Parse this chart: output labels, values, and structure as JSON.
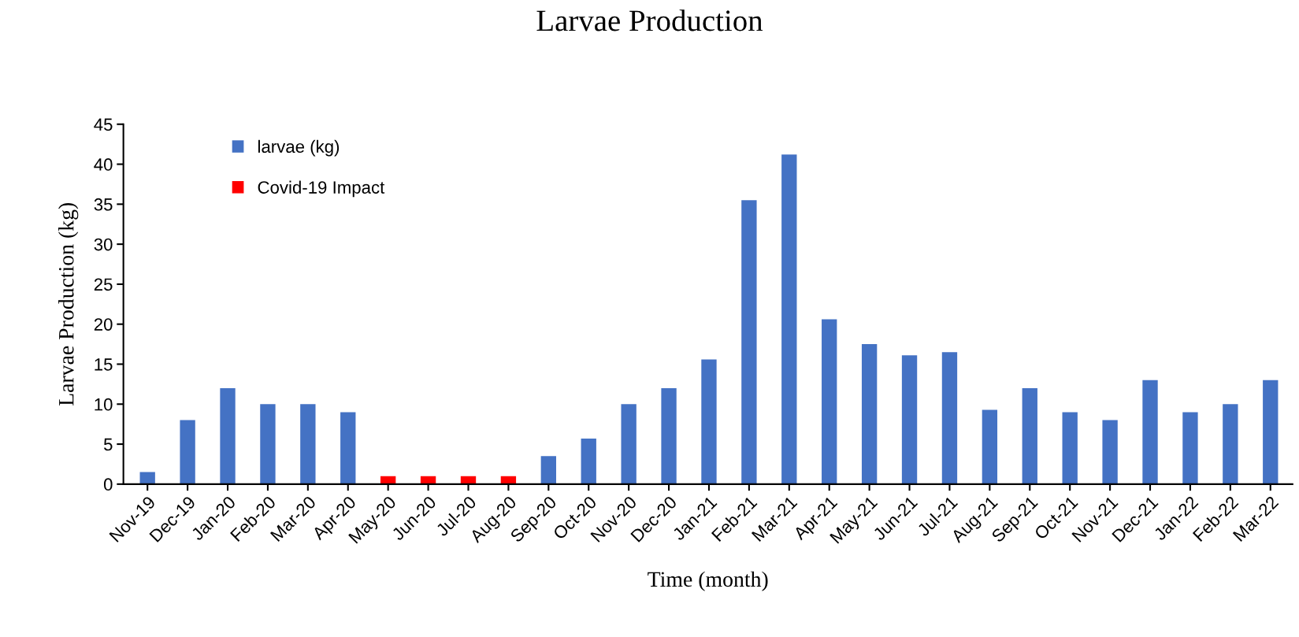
{
  "chart_data": {
    "type": "bar",
    "title": "Larvae Production",
    "xlabel": "Time (month)",
    "ylabel": "Larvae Production (kg)",
    "categories": [
      "Nov-19",
      "Dec-19",
      "Jan-20",
      "Feb-20",
      "Mar-20",
      "Apr-20",
      "May-20",
      "Jun-20",
      "Jul-20",
      "Aug-20",
      "Sep-20",
      "Oct-20",
      "Nov-20",
      "Dec-20",
      "Jan-21",
      "Feb-21",
      "Mar-21",
      "Apr-21",
      "May-21",
      "Jun-21",
      "Jul-21",
      "Aug-21",
      "Sep-21",
      "Oct-21",
      "Nov-21",
      "Dec-21",
      "Jan-22",
      "Feb-22",
      "Mar-22"
    ],
    "series": [
      {
        "name": "larvae (kg)",
        "color": "#4472c4",
        "values": [
          1.5,
          8,
          12,
          10,
          10,
          9,
          null,
          null,
          null,
          null,
          3.5,
          5.7,
          10,
          12,
          15.6,
          35.5,
          41.2,
          20.6,
          17.5,
          16.1,
          16.5,
          9.3,
          12,
          9,
          8,
          13,
          9,
          10,
          13
        ]
      },
      {
        "name": "Covid-19 Impact",
        "color": "#ff0000",
        "values": [
          null,
          null,
          null,
          null,
          null,
          null,
          1,
          1,
          1,
          1,
          null,
          null,
          null,
          null,
          null,
          null,
          null,
          null,
          null,
          null,
          null,
          null,
          null,
          null,
          null,
          null,
          null,
          null,
          null
        ]
      }
    ],
    "ylim": [
      0,
      45
    ],
    "yticks": [
      0,
      5,
      10,
      15,
      20,
      25,
      30,
      35,
      40,
      45
    ],
    "grid": false,
    "legend": "top left"
  }
}
